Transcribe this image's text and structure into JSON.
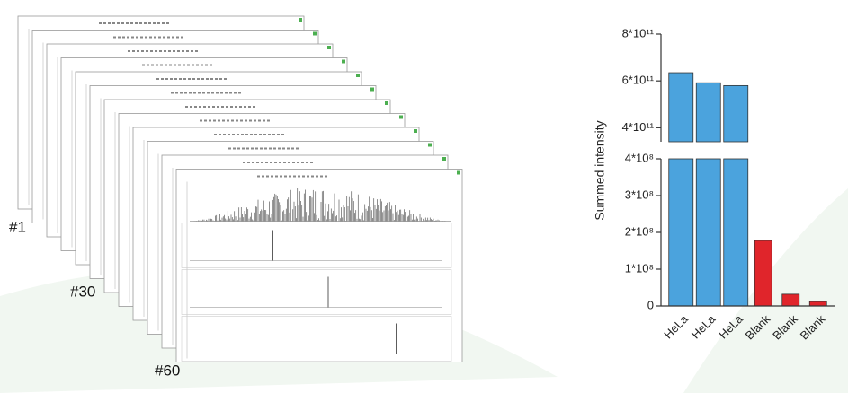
{
  "spectra_stack": {
    "labels": [
      "#1",
      "#30",
      "#60"
    ]
  },
  "chart_data": {
    "type": "bar",
    "ylabel": "Summed intensity",
    "categories": [
      "HeLa",
      "HeLa",
      "HeLa",
      "Blank",
      "Blank",
      "Blank"
    ],
    "values": [
      635000000000,
      592000000000,
      580000000000,
      178000000,
      32000000,
      12000000
    ],
    "colors": [
      "#4ba3dd",
      "#4ba3dd",
      "#4ba3dd",
      "#e0252b",
      "#e0252b",
      "#e0252b"
    ],
    "axis_segments": [
      {
        "ylim": [
          0,
          400000000
        ],
        "yticks": [
          {
            "value": 0,
            "label": "0"
          },
          {
            "value": 100000000,
            "label": "1*10⁸"
          },
          {
            "value": 200000000,
            "label": "2*10⁸"
          },
          {
            "value": 300000000,
            "label": "3*10⁸"
          },
          {
            "value": 400000000,
            "label": "4*10⁸"
          }
        ]
      },
      {
        "ylim": [
          340000000000,
          800000000000
        ],
        "yticks": [
          {
            "value": 400000000000,
            "label": "4*10¹¹"
          },
          {
            "value": 600000000000,
            "label": "6*10¹¹"
          },
          {
            "value": 800000000000,
            "label": "8*10¹¹"
          }
        ]
      }
    ]
  }
}
